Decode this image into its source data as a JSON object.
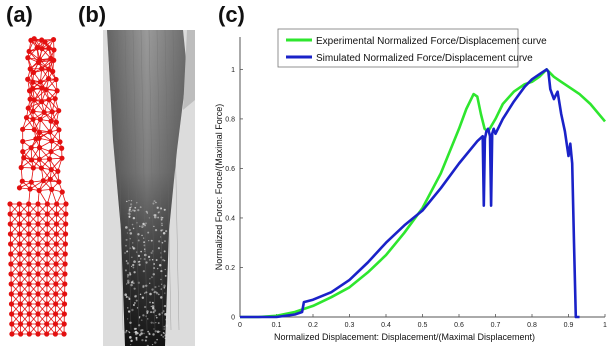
{
  "panels": {
    "a": "(a)",
    "b": "(b)",
    "c": "(c)"
  },
  "colors": {
    "mesh": "#e31010",
    "experimental": "#2ee62e",
    "simulated": "#1a22c8",
    "axis": "#555555"
  },
  "chart_data": {
    "type": "line",
    "xlabel": "Normalized Displacement: Displacement/(Maximal Displacement)",
    "ylabel": "Normalized Force: Force/(Maximal Force)",
    "xlim": [
      0,
      1
    ],
    "ylim": [
      0,
      1.05
    ],
    "xticks": [
      "0",
      "0.1",
      "0.2",
      "0.3",
      "0.4",
      "0.5",
      "0.6",
      "0.7",
      "0.8",
      "0.9",
      "1"
    ],
    "yticks": [
      "0",
      "0.2",
      "0.4",
      "0.6",
      "0.8",
      "1"
    ],
    "legend_position": "top-left",
    "series": [
      {
        "name": "Experimental Normalized Force/Displacement curve",
        "x": [
          0,
          0.05,
          0.1,
          0.15,
          0.2,
          0.25,
          0.3,
          0.35,
          0.4,
          0.45,
          0.5,
          0.55,
          0.6,
          0.62,
          0.64,
          0.65,
          0.66,
          0.67,
          0.68,
          0.7,
          0.72,
          0.75,
          0.78,
          0.8,
          0.82,
          0.84,
          0.86,
          0.88,
          0.9,
          0.93,
          0.96,
          1.0
        ],
        "y": [
          0,
          0,
          0.005,
          0.02,
          0.045,
          0.08,
          0.12,
          0.18,
          0.25,
          0.34,
          0.44,
          0.58,
          0.76,
          0.84,
          0.9,
          0.89,
          0.82,
          0.76,
          0.75,
          0.8,
          0.86,
          0.91,
          0.94,
          0.95,
          0.97,
          1.0,
          0.97,
          0.95,
          0.93,
          0.9,
          0.86,
          0.79
        ]
      },
      {
        "name": "Simulated Normalized Force/Displacement curve",
        "x": [
          0,
          0.1,
          0.15,
          0.17,
          0.175,
          0.2,
          0.25,
          0.3,
          0.35,
          0.4,
          0.45,
          0.5,
          0.55,
          0.6,
          0.65,
          0.665,
          0.668,
          0.671,
          0.675,
          0.68,
          0.685,
          0.688,
          0.691,
          0.695,
          0.7,
          0.72,
          0.75,
          0.78,
          0.8,
          0.82,
          0.84,
          0.845,
          0.85,
          0.86,
          0.87,
          0.88,
          0.89,
          0.9,
          0.905,
          0.91,
          0.915,
          0.92,
          0.93
        ],
        "y": [
          0,
          0,
          0.01,
          0.02,
          0.06,
          0.07,
          0.1,
          0.15,
          0.22,
          0.3,
          0.37,
          0.43,
          0.52,
          0.62,
          0.71,
          0.73,
          0.45,
          0.72,
          0.75,
          0.76,
          0.73,
          0.45,
          0.74,
          0.76,
          0.74,
          0.8,
          0.87,
          0.93,
          0.96,
          0.98,
          1.0,
          0.99,
          0.92,
          0.88,
          0.91,
          0.82,
          0.75,
          0.65,
          0.7,
          0.62,
          0.3,
          0.0,
          0.0
        ]
      }
    ]
  }
}
